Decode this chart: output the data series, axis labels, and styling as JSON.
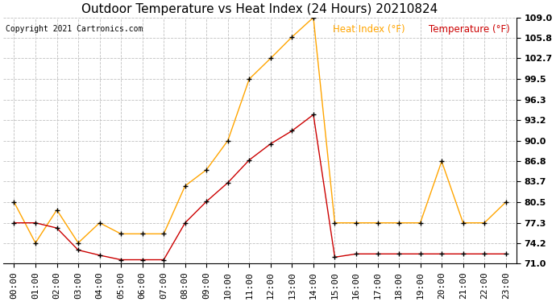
{
  "title": "Outdoor Temperature vs Heat Index (24 Hours) 20210824",
  "copyright": "Copyright 2021 Cartronics.com",
  "legend_heat_index": "Heat Index (°F)",
  "legend_temperature": "Temperature (°F)",
  "hours": [
    0,
    1,
    2,
    3,
    4,
    5,
    6,
    7,
    8,
    9,
    10,
    11,
    12,
    13,
    14,
    15,
    16,
    17,
    18,
    19,
    20,
    21,
    22,
    23
  ],
  "heat_index": [
    80.5,
    74.2,
    79.3,
    74.2,
    77.3,
    75.6,
    75.6,
    75.6,
    83.0,
    85.5,
    90.0,
    99.5,
    102.7,
    106.0,
    109.0,
    77.3,
    77.3,
    77.3,
    77.3,
    77.3,
    86.8,
    77.3,
    77.3,
    80.5
  ],
  "temperature": [
    77.3,
    77.3,
    76.5,
    73.1,
    72.3,
    71.6,
    71.6,
    71.6,
    77.3,
    80.6,
    83.5,
    87.0,
    89.5,
    91.5,
    94.0,
    72.0,
    72.5,
    72.5,
    72.5,
    72.5,
    72.5,
    72.5,
    72.5,
    72.5
  ],
  "heat_index_color": "#FFA500",
  "temperature_color": "#CC0000",
  "marker_color": "black",
  "background_color": "#ffffff",
  "grid_color": "#c0c0c0",
  "ylim": [
    71.0,
    109.0
  ],
  "yticks": [
    71.0,
    74.2,
    77.3,
    80.5,
    83.7,
    86.8,
    90.0,
    93.2,
    96.3,
    99.5,
    102.7,
    105.8,
    109.0
  ],
  "title_fontsize": 11,
  "axis_fontsize": 8,
  "legend_fontsize": 8.5,
  "copyright_fontsize": 7
}
